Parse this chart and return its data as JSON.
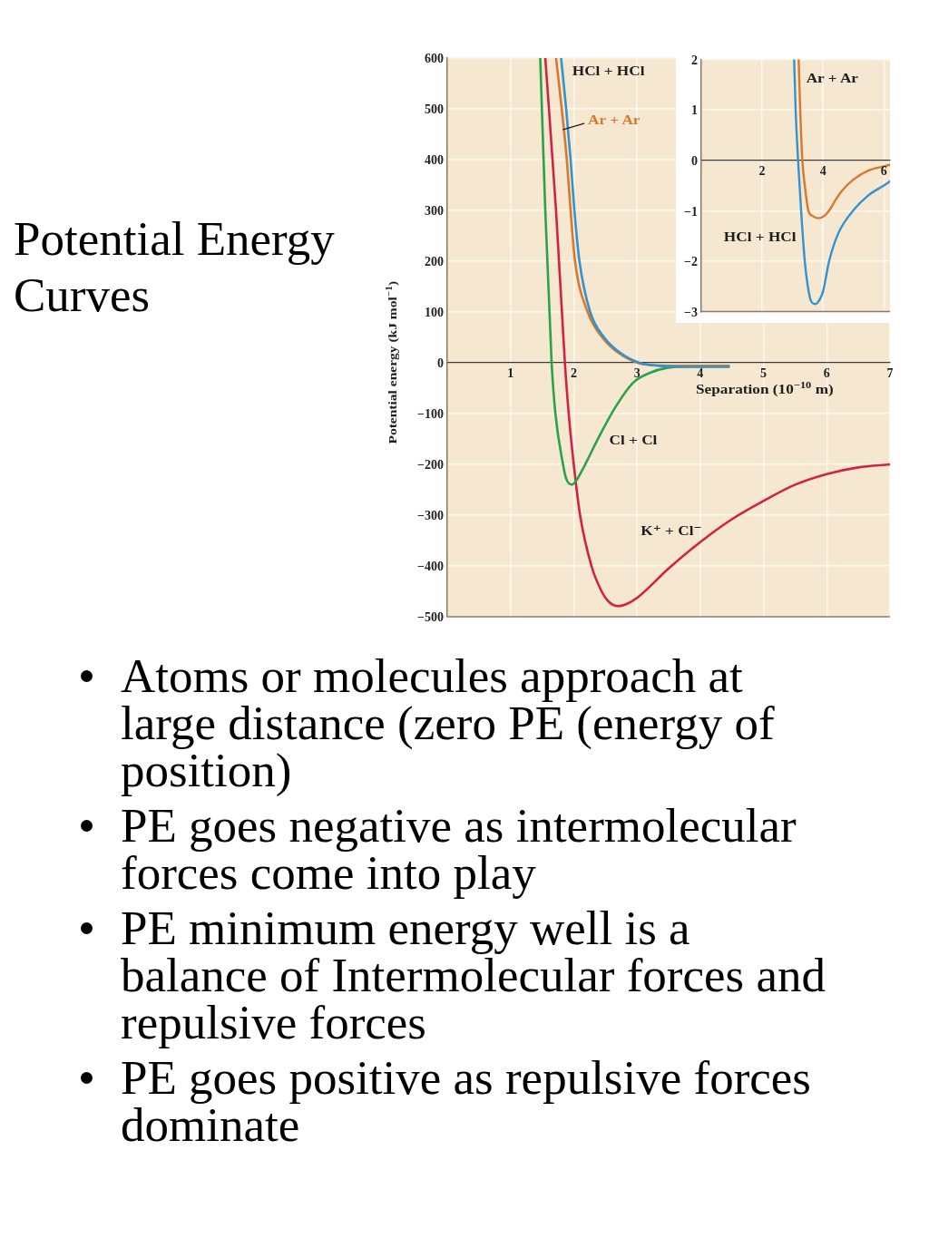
{
  "chart_data": [
    {
      "type": "line",
      "title": "Potential Energy Curves",
      "xlabel": "Separation (10$^{−10}$ m)",
      "ylabel": "Potential energy (kJ mol$^{−1}$)",
      "xlim": [
        0,
        7
      ],
      "xticks": [
        1,
        2,
        3,
        4,
        5,
        6,
        7
      ],
      "ylim": [
        -500,
        600
      ],
      "yticks": [
        {
          "value": -500,
          "label": "−500"
        },
        {
          "value": -400,
          "label": "−400"
        },
        {
          "value": -300,
          "label": "−300"
        },
        {
          "value": -200,
          "label": "−200"
        },
        {
          "value": -100,
          "label": "−100"
        },
        0,
        100,
        200,
        300,
        400,
        500,
        600
      ],
      "grid": true,
      "marker": "none",
      "series": [
        {
          "name": "HCl + HCl",
          "color": "#3193cf",
          "x": [
            1.8,
            1.88,
            1.95,
            2.01,
            2.09,
            2.26,
            2.48,
            2.73,
            3.04,
            3.35,
            3.7,
            4.45
          ],
          "values": [
            600,
            500,
            400,
            300,
            200,
            100,
            50,
            20,
            0,
            -6,
            -8,
            -8
          ]
        },
        {
          "name": "Ar + Ar",
          "color": "#d9782d",
          "x": [
            1.72,
            1.81,
            1.89,
            1.95,
            2.02,
            2.22,
            2.45,
            2.7,
            3.01,
            3.3,
            3.7,
            4.45
          ],
          "values": [
            600,
            500,
            400,
            300,
            200,
            100,
            50,
            20,
            0,
            -5,
            -6,
            -6
          ]
        },
        {
          "name": "Cl + Cl",
          "color": "#2ba24a",
          "x": [
            1.47,
            1.55,
            1.65,
            1.71,
            1.83,
            1.88,
            1.97,
            2.05,
            2.14,
            2.41,
            2.67,
            2.94,
            3.2,
            3.47,
            3.9,
            4.45
          ],
          "values": [
            600,
            300,
            0,
            -100,
            -200,
            -228,
            -240,
            -230,
            -210,
            -143,
            -85,
            -39,
            -20,
            -10,
            -7,
            -7
          ]
        },
        {
          "name": "K⁺ + Cl⁻",
          "color": "#d1223f",
          "x": [
            1.55,
            1.72,
            1.86,
            1.92,
            2.0,
            2.1,
            2.28,
            2.44,
            2.55,
            2.7,
            2.85,
            3.0,
            3.5,
            4.0,
            4.5,
            5.0,
            5.5,
            6.0,
            6.5,
            7.0
          ],
          "values": [
            600,
            300,
            0,
            -100,
            -200,
            -300,
            -400,
            -450,
            -470,
            -479,
            -474,
            -463,
            -405,
            -353,
            -308,
            -272,
            -240,
            -219,
            -206,
            -200
          ]
        }
      ],
      "annotations": [
        "Atoms or molecules approach at large distance (zero PE (energy of position)",
        "PE goes negative as intermolecular forces come into play",
        "PE minimum energy well is a balance of Intermolecular forces and repulsive forces",
        "PE goes positive as repulsive forces dominate"
      ]
    },
    {
      "type": "line",
      "xlim": [
        0,
        6.2
      ],
      "xticks": [
        2,
        4,
        6
      ],
      "ylim": [
        -3,
        2
      ],
      "yticks": [
        {
          "value": -3,
          "label": "−3"
        },
        {
          "value": -2,
          "label": "−2"
        },
        {
          "value": -1,
          "label": "−1"
        },
        0,
        1,
        2
      ],
      "grid": true,
      "marker": "none",
      "series": [
        {
          "name": "Ar + Ar",
          "color": "#d9782d",
          "x": [
            3.2,
            3.25,
            3.32,
            3.4,
            3.52,
            3.65,
            3.85,
            4.05,
            4.2,
            4.4,
            4.6,
            5.0,
            5.5,
            6.0,
            6.2
          ],
          "values": [
            2,
            1,
            0,
            -0.5,
            -1,
            -1.1,
            -1.15,
            -1.1,
            -1.0,
            -0.8,
            -0.62,
            -0.38,
            -0.2,
            -0.12,
            -0.09
          ]
        },
        {
          "name": "HCl + HCl",
          "color": "#3193cf",
          "x": [
            3.05,
            3.1,
            3.18,
            3.28,
            3.4,
            3.5,
            3.6,
            3.75,
            3.9,
            4.0,
            4.2,
            4.5,
            5.0,
            5.5,
            6.0,
            6.2
          ],
          "values": [
            2,
            1,
            0,
            -1,
            -2,
            -2.5,
            -2.78,
            -2.85,
            -2.75,
            -2.6,
            -2.0,
            -1.45,
            -0.99,
            -0.69,
            -0.5,
            -0.42
          ]
        }
      ]
    }
  ]
}
